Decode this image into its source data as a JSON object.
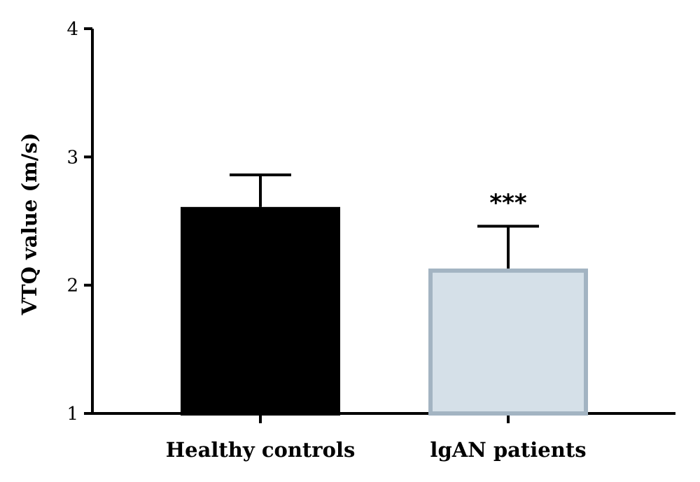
{
  "chart_data": {
    "type": "bar",
    "title": "",
    "xlabel": "",
    "ylabel": "VTQ value (m/s)",
    "ylim": [
      1,
      4
    ],
    "yticks": [
      1,
      2,
      3,
      4
    ],
    "categories": [
      "Healthy controls",
      "lgAN patients"
    ],
    "values": [
      2.61,
      2.13
    ],
    "errors": [
      0.25,
      0.33
    ],
    "annotations": [
      "",
      "***"
    ],
    "grid": false,
    "colors": {
      "fill": [
        "#000000",
        "#d5e0e8"
      ],
      "stroke": [
        "#000000",
        "#a3b4c2"
      ]
    }
  }
}
